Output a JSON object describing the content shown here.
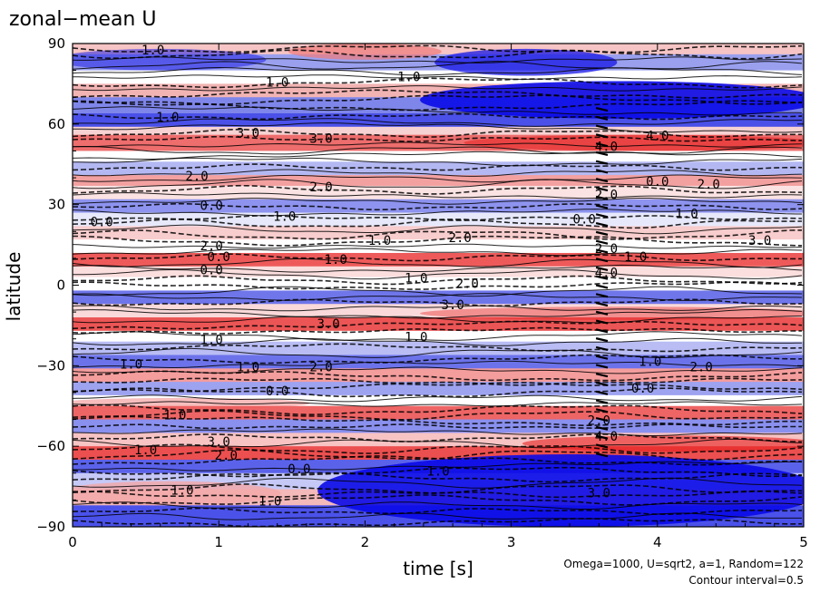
{
  "chart_data": {
    "type": "heatmap",
    "title": "zonal−mean U",
    "xlabel": "time [s]",
    "ylabel": "latitude",
    "xlim": [
      0,
      5
    ],
    "ylim": [
      -90,
      90
    ],
    "x_ticks": [
      "0",
      "1",
      "2",
      "3",
      "4",
      "5"
    ],
    "y_ticks": [
      "90",
      "60",
      "30",
      "0",
      "−30",
      "−60",
      "−90"
    ],
    "x_tick_values": [
      0,
      1,
      2,
      3,
      4,
      5
    ],
    "y_tick_values": [
      90,
      60,
      30,
      0,
      -30,
      -60,
      -90
    ],
    "notes": [
      "Omega=1000, U=sqrt2, a=1, Random=122",
      "Contour interval=0.5"
    ],
    "colors": {
      "positive": "#e8202a",
      "negative": "#1010e8",
      "neutral": "#ffffff"
    },
    "contour_labels": [
      {
        "text": "1.0",
        "t": 0.55,
        "lat": 86
      },
      {
        "text": "1.0",
        "t": 1.4,
        "lat": 74
      },
      {
        "text": "1.0",
        "t": 2.3,
        "lat": 76
      },
      {
        "text": "1.0",
        "t": 0.65,
        "lat": 61
      },
      {
        "text": "3.0",
        "t": 1.2,
        "lat": 55
      },
      {
        "text": "3.0",
        "t": 1.7,
        "lat": 53
      },
      {
        "text": "4.0",
        "t": 3.65,
        "lat": 50
      },
      {
        "text": "4.0",
        "t": 4.0,
        "lat": 54
      },
      {
        "text": "2.0",
        "t": 0.85,
        "lat": 39
      },
      {
        "text": "2.0",
        "t": 1.7,
        "lat": 35
      },
      {
        "text": "2.0",
        "t": 3.65,
        "lat": 32
      },
      {
        "text": "2.0",
        "t": 4.35,
        "lat": 36
      },
      {
        "text": "0.0",
        "t": 0.2,
        "lat": 22
      },
      {
        "text": "0.0",
        "t": 0.95,
        "lat": 28
      },
      {
        "text": "0.0",
        "t": 3.5,
        "lat": 23
      },
      {
        "text": "0.0",
        "t": 4.0,
        "lat": 37
      },
      {
        "text": "1.0",
        "t": 1.45,
        "lat": 24
      },
      {
        "text": "1.0",
        "t": 4.2,
        "lat": 25
      },
      {
        "text": "1.0",
        "t": 2.1,
        "lat": 15
      },
      {
        "text": "1.0",
        "t": 3.85,
        "lat": 9
      },
      {
        "text": "2.0",
        "t": 2.65,
        "lat": 16
      },
      {
        "text": "2.0",
        "t": 3.65,
        "lat": 12
      },
      {
        "text": "3.0",
        "t": 4.7,
        "lat": 15
      },
      {
        "text": "2.0",
        "t": 0.95,
        "lat": 13
      },
      {
        "text": "0.0",
        "t": 1.0,
        "lat": 9
      },
      {
        "text": "1.0",
        "t": 1.8,
        "lat": 8
      },
      {
        "text": "0.0",
        "t": 0.95,
        "lat": 4
      },
      {
        "text": "1.0",
        "t": 2.35,
        "lat": 1
      },
      {
        "text": "2.0",
        "t": 2.7,
        "lat": -1
      },
      {
        "text": "4.0",
        "t": 3.65,
        "lat": 3
      },
      {
        "text": "3.0",
        "t": 2.6,
        "lat": -9
      },
      {
        "text": "3.0",
        "t": 1.75,
        "lat": -16
      },
      {
        "text": "1.0",
        "t": 2.35,
        "lat": -21
      },
      {
        "text": "1.0",
        "t": 0.95,
        "lat": -22
      },
      {
        "text": "1.0",
        "t": 0.4,
        "lat": -31
      },
      {
        "text": "1.0",
        "t": 1.2,
        "lat": -32
      },
      {
        "text": "2.0",
        "t": 1.7,
        "lat": -32
      },
      {
        "text": "1.0",
        "t": 3.95,
        "lat": -30
      },
      {
        "text": "2.0",
        "t": 4.3,
        "lat": -32
      },
      {
        "text": "0.0",
        "t": 3.9,
        "lat": -40
      },
      {
        "text": "0.0",
        "t": 1.4,
        "lat": -41
      },
      {
        "text": "2.0",
        "t": 3.6,
        "lat": -52
      },
      {
        "text": "1.0",
        "t": 0.7,
        "lat": -50
      },
      {
        "text": "4.0",
        "t": 3.65,
        "lat": -58
      },
      {
        "text": "3.0",
        "t": 1.0,
        "lat": -60
      },
      {
        "text": "1.0",
        "t": 0.5,
        "lat": -63
      },
      {
        "text": "2.0",
        "t": 1.05,
        "lat": -65
      },
      {
        "text": "0.0",
        "t": 1.55,
        "lat": -70
      },
      {
        "text": "1.0",
        "t": 2.5,
        "lat": -71
      },
      {
        "text": "1.0",
        "t": 0.75,
        "lat": -78
      },
      {
        "text": "1.0",
        "t": 1.35,
        "lat": -82
      },
      {
        "text": "3.0",
        "t": 3.6,
        "lat": -79
      }
    ]
  }
}
